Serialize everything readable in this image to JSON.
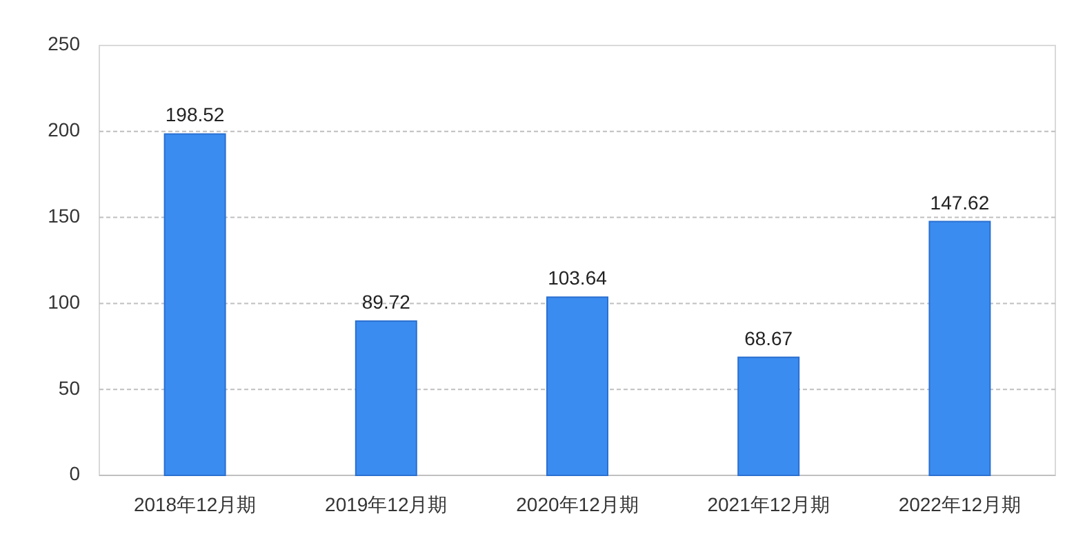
{
  "chart_data": {
    "type": "bar",
    "categories": [
      "2018年12月期",
      "2019年12月期",
      "2020年12月期",
      "2021年12月期",
      "2022年12月期"
    ],
    "values": [
      198.52,
      89.72,
      103.64,
      68.67,
      147.62
    ],
    "color": "#3b8cf0",
    "ylim": [
      0,
      250
    ],
    "yticks": [
      0,
      50,
      100,
      150,
      200,
      250
    ],
    "grid": "y",
    "data_labels": true
  }
}
